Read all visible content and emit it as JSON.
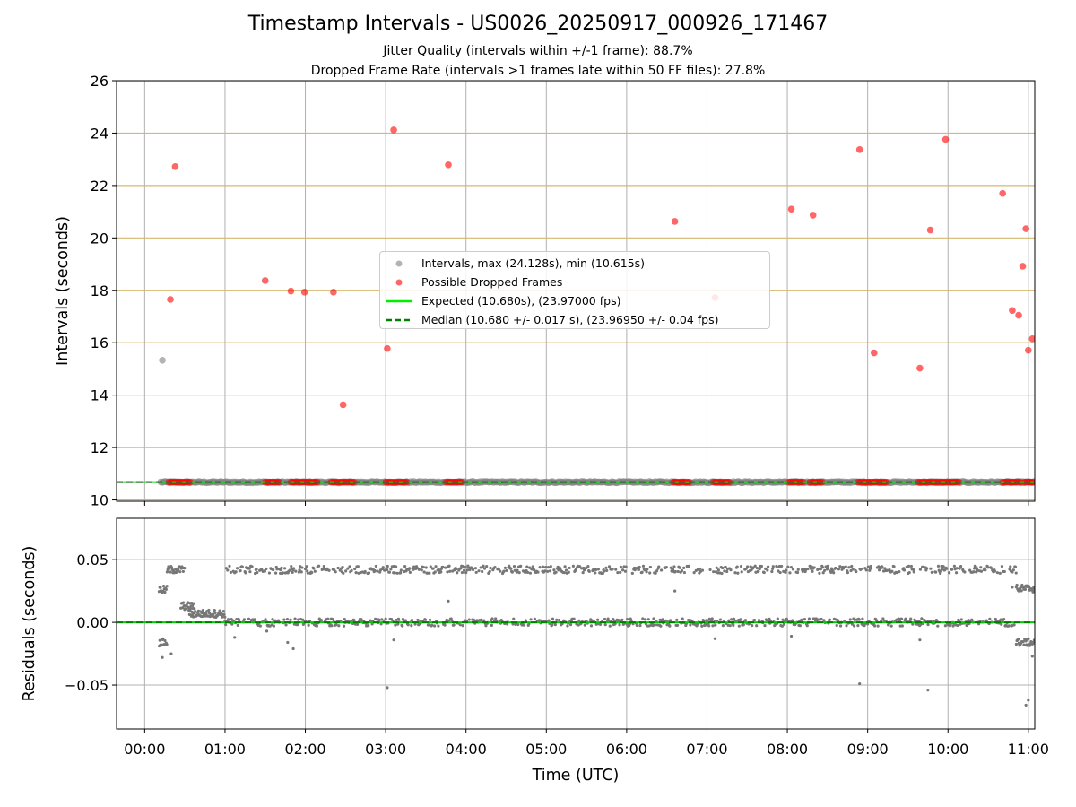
{
  "title": "Timestamp Intervals - US0026_20250917_000926_171467",
  "subtitle1": "Jitter Quality (intervals within +/-1 frame): 88.7%",
  "subtitle2": "Dropped Frame Rate (intervals >1 frames late within 50 FF files): 27.8%",
  "chart_data": [
    {
      "type": "scatter",
      "panel": "intervals",
      "ylabel": "Intervals (seconds)",
      "xlim_hours": [
        -0.35,
        11.08
      ],
      "ylim": [
        9.95,
        26
      ],
      "yticks": [
        10,
        12,
        14,
        16,
        18,
        20,
        22,
        24,
        26
      ],
      "grid": true,
      "legend": {
        "placement": "center",
        "entries": [
          "Intervals, max (24.128s), min (10.615s)",
          "Possible Dropped Frames",
          "Expected (10.680s), (23.97000 fps)",
          "Median (10.680 +/- 0.017 s), (23.96950 +/- 0.04 fps)"
        ]
      },
      "expected_line": 10.68,
      "median_line": 10.68,
      "baseline_interval": 10.68,
      "baseline_span_hours": [
        0.2,
        11.08
      ],
      "grey_outliers": [
        [
          0.22,
          15.33
        ]
      ],
      "dropped_frames": [
        [
          0.32,
          17.65
        ],
        [
          0.38,
          22.72
        ],
        [
          1.5,
          18.37
        ],
        [
          1.82,
          17.97
        ],
        [
          1.99,
          17.93
        ],
        [
          2.35,
          17.93
        ],
        [
          2.47,
          13.63
        ],
        [
          3.02,
          15.78
        ],
        [
          3.1,
          24.12
        ],
        [
          3.78,
          22.79
        ],
        [
          6.6,
          20.63
        ],
        [
          7.1,
          17.72
        ],
        [
          8.05,
          21.1
        ],
        [
          8.32,
          20.87
        ],
        [
          8.9,
          23.37
        ],
        [
          9.08,
          15.61
        ],
        [
          9.65,
          15.03
        ],
        [
          9.78,
          20.3
        ],
        [
          9.97,
          23.76
        ],
        [
          10.68,
          21.7
        ],
        [
          10.8,
          17.23
        ],
        [
          10.88,
          17.05
        ],
        [
          10.93,
          18.92
        ],
        [
          10.97,
          20.35
        ],
        [
          11.0,
          15.71
        ],
        [
          11.05,
          16.15
        ]
      ],
      "dropped_clusters_hours": [
        [
          0.3,
          0.58
        ],
        [
          1.5,
          1.68
        ],
        [
          1.82,
          2.15
        ],
        [
          2.32,
          2.62
        ],
        [
          3.0,
          3.28
        ],
        [
          3.75,
          3.95
        ],
        [
          6.58,
          6.78
        ],
        [
          7.08,
          7.28
        ],
        [
          8.02,
          8.2
        ],
        [
          8.28,
          8.45
        ],
        [
          8.88,
          9.25
        ],
        [
          9.63,
          10.15
        ],
        [
          10.68,
          10.92
        ],
        [
          10.95,
          11.08
        ]
      ]
    },
    {
      "type": "scatter",
      "panel": "residuals",
      "xlabel": "Time (UTC)",
      "ylabel": "Residuals (seconds)",
      "xlim_hours": [
        -0.35,
        11.08
      ],
      "ylim": [
        -0.085,
        0.083
      ],
      "yticks": [
        -0.05,
        0.0,
        0.05
      ],
      "ytick_labels": [
        "−0.05",
        "0.00",
        "0.05"
      ],
      "xticks_hours": [
        0,
        1,
        2,
        3,
        4,
        5,
        6,
        7,
        8,
        9,
        10,
        11
      ],
      "xtick_labels": [
        "00:00",
        "01:00",
        "02:00",
        "03:00",
        "04:00",
        "05:00",
        "06:00",
        "07:00",
        "08:00",
        "09:00",
        "10:00",
        "11:00"
      ],
      "zero_line": 0.0,
      "upper_band": 0.042,
      "lower_band": 0.0,
      "band_span_hours": [
        1.0,
        10.85
      ],
      "startup_segments": [
        {
          "span": [
            0.18,
            0.28
          ],
          "value": -0.016
        },
        {
          "span": [
            0.18,
            0.28
          ],
          "value": 0.026
        },
        {
          "span": [
            0.28,
            0.5
          ],
          "value": 0.042
        },
        {
          "span": [
            0.45,
            0.62
          ],
          "value": 0.013
        },
        {
          "span": [
            0.55,
            1.0
          ],
          "value": 0.007
        },
        {
          "span": [
            10.85,
            11.08
          ],
          "value": 0.027
        },
        {
          "span": [
            10.85,
            11.08
          ],
          "value": -0.016
        }
      ],
      "isolated_points": [
        [
          0.2,
          0.025
        ],
        [
          0.22,
          -0.028
        ],
        [
          0.33,
          -0.025
        ],
        [
          1.12,
          -0.012
        ],
        [
          1.52,
          -0.007
        ],
        [
          1.78,
          -0.016
        ],
        [
          1.85,
          -0.021
        ],
        [
          3.02,
          -0.052
        ],
        [
          3.1,
          -0.014
        ],
        [
          3.78,
          0.017
        ],
        [
          6.6,
          0.025
        ],
        [
          7.1,
          -0.013
        ],
        [
          8.05,
          -0.011
        ],
        [
          8.9,
          -0.049
        ],
        [
          9.75,
          -0.054
        ],
        [
          9.65,
          -0.014
        ],
        [
          10.97,
          -0.066
        ],
        [
          11.0,
          -0.062
        ],
        [
          10.8,
          0.028
        ],
        [
          11.05,
          -0.027
        ]
      ]
    }
  ]
}
